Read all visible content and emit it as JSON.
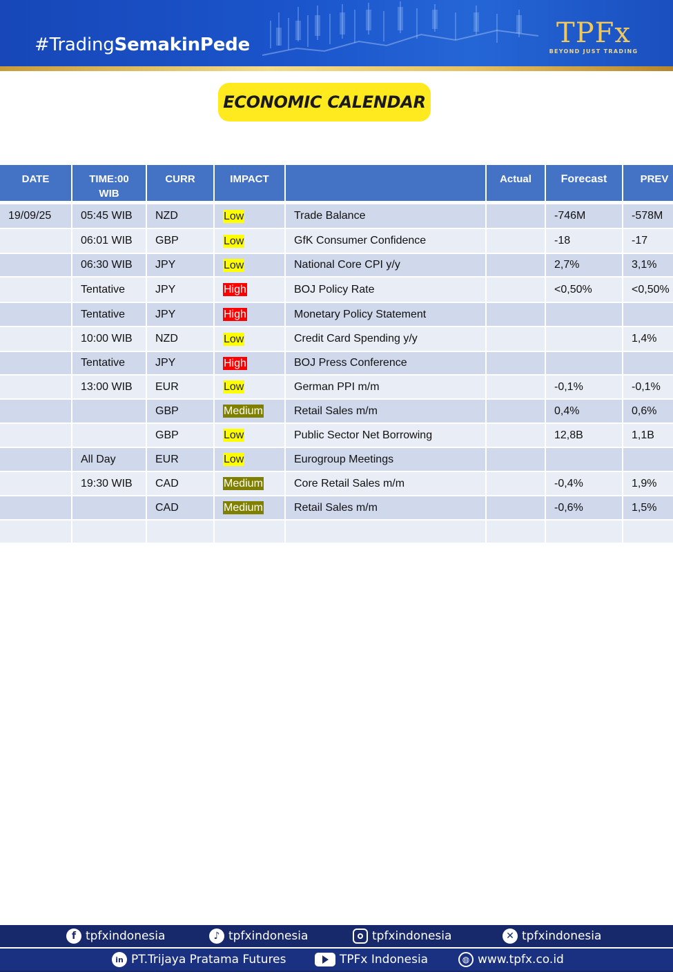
{
  "header": {
    "hashtag_light": "#Trading",
    "hashtag_bold": "SemakinPede",
    "logo_text": "TPFx",
    "logo_tagline": "BEYOND JUST TRADING"
  },
  "title": "ECONOMIC CALENDAR",
  "table": {
    "headers": {
      "date": "DATE",
      "time_line1": "TIME:00",
      "time_line2": "WIB",
      "curr": "CURR",
      "impact": "IMPACT",
      "event": "",
      "actual": "Actual",
      "forecast": "Forecast",
      "prev": "PREV"
    },
    "rows": [
      {
        "date": "19/09/25",
        "time": "05:45 WIB",
        "curr": "NZD",
        "impact": "Low",
        "event": "Trade Balance",
        "actual": "",
        "forecast": "-746M",
        "prev": "-578M"
      },
      {
        "date": "",
        "time": "06:01 WIB",
        "curr": "GBP",
        "impact": "Low",
        "event": "GfK Consumer Confidence",
        "actual": "",
        "forecast": "-18",
        "prev": "-17"
      },
      {
        "date": "",
        "time": "06:30 WIB",
        "curr": "JPY",
        "impact": "Low",
        "event": "National Core CPI y/y",
        "actual": "",
        "forecast": "2,7%",
        "prev": "3,1%"
      },
      {
        "date": "",
        "time": "Tentative",
        "curr": "JPY",
        "impact": "High",
        "event": "BOJ Policy Rate",
        "actual": "",
        "forecast": "<0,50%",
        "prev": "<0,50%"
      },
      {
        "date": "",
        "time": "Tentative",
        "curr": "JPY",
        "impact": "High",
        "event": "Monetary Policy Statement",
        "actual": "",
        "forecast": "",
        "prev": ""
      },
      {
        "date": "",
        "time": "10:00 WIB",
        "curr": "NZD",
        "impact": "Low",
        "event": "Credit Card Spending y/y",
        "actual": "",
        "forecast": "",
        "prev": "1,4%"
      },
      {
        "date": "",
        "time": "Tentative",
        "curr": "JPY",
        "impact": "High",
        "event": "BOJ Press Conference",
        "actual": "",
        "forecast": "",
        "prev": ""
      },
      {
        "date": "",
        "time": "13:00 WIB",
        "curr": "EUR",
        "impact": "Low",
        "event": "German PPI m/m",
        "actual": "",
        "forecast": "-0,1%",
        "prev": "-0,1%"
      },
      {
        "date": "",
        "time": "",
        "curr": "GBP",
        "impact": "Medium",
        "event": "Retail Sales m/m",
        "actual": "",
        "forecast": "0,4%",
        "prev": "0,6%"
      },
      {
        "date": "",
        "time": "",
        "curr": "GBP",
        "impact": "Low",
        "event": "Public Sector Net Borrowing",
        "actual": "",
        "forecast": "12,8B",
        "prev": "1,1B"
      },
      {
        "date": "",
        "time": "All Day",
        "curr": "EUR",
        "impact": "Low",
        "event": "Eurogroup Meetings",
        "actual": "",
        "forecast": "",
        "prev": ""
      },
      {
        "date": "",
        "time": "19:30 WIB",
        "curr": "CAD",
        "impact": "Medium",
        "event": "Core Retail Sales m/m",
        "actual": "",
        "forecast": "-0,4%",
        "prev": "1,9%"
      },
      {
        "date": "",
        "time": "",
        "curr": "CAD",
        "impact": "Medium",
        "event": "Retail Sales m/m",
        "actual": "",
        "forecast": "-0,6%",
        "prev": "1,5%"
      },
      {
        "date": "",
        "time": "",
        "curr": "",
        "impact": "",
        "event": "",
        "actual": "",
        "forecast": "",
        "prev": ""
      }
    ],
    "impact_colors": {
      "Low": "#ffff00",
      "High": "#ff0000",
      "Medium": "#808000"
    }
  },
  "footer": {
    "row1": [
      {
        "icon": "facebook-icon",
        "text": "tpfxindonesia"
      },
      {
        "icon": "tiktok-icon",
        "text": "tpfxindonesia"
      },
      {
        "icon": "instagram-icon",
        "text": "tpfxindonesia"
      },
      {
        "icon": "x-icon",
        "text": "tpfxindonesia"
      }
    ],
    "row2": [
      {
        "icon": "linkedin-icon",
        "text": "PT.Trijaya Pratama Futures"
      },
      {
        "icon": "youtube-icon",
        "text": "TPFx Indonesia"
      },
      {
        "icon": "globe-icon",
        "text": "www.tpfx.co.id"
      }
    ]
  },
  "colors": {
    "header_blue": "#1b55cc",
    "table_header": "#4472c4",
    "row_odd": "#d0d8eb",
    "row_even": "#e9edf5",
    "title_yellow": "#ffea1f",
    "footer_navy": "#17296a"
  }
}
